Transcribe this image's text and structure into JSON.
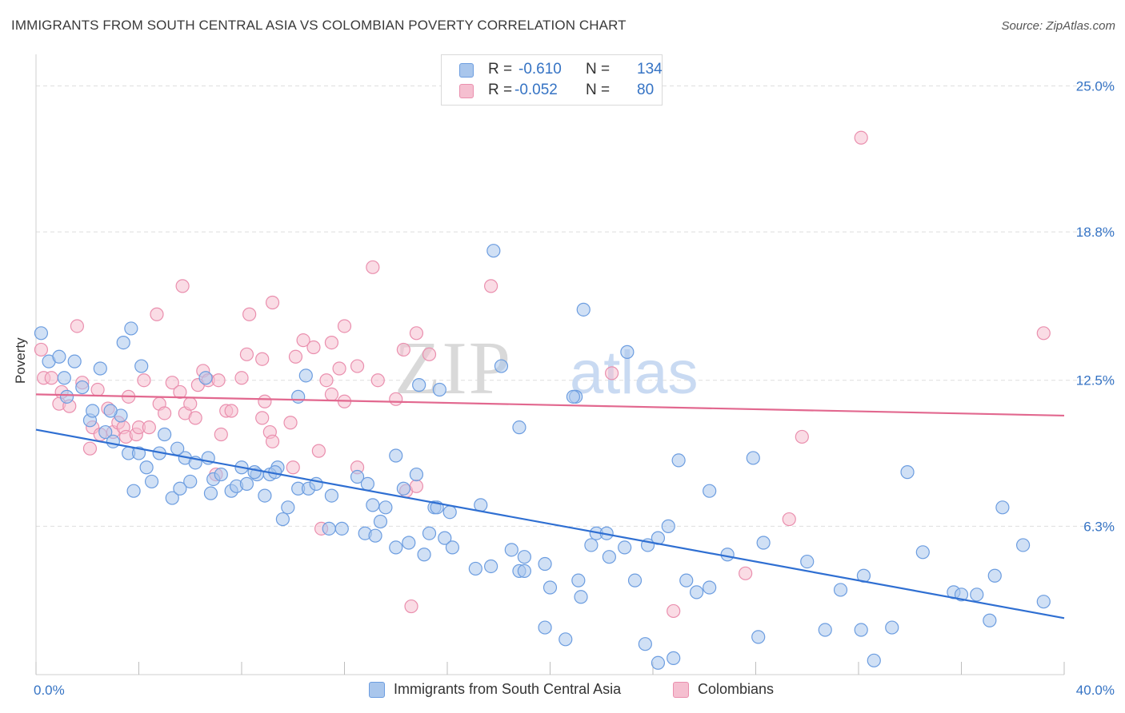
{
  "header": {
    "title": "IMMIGRANTS FROM SOUTH CENTRAL ASIA VS COLOMBIAN POVERTY CORRELATION CHART",
    "source": "Source: ZipAtlas.com"
  },
  "legend": {
    "rows": [
      {
        "r_label": "R =",
        "r_value": "-0.610",
        "n_label": "N =",
        "n_value": "134"
      },
      {
        "r_label": "R =",
        "r_value": "-0.052",
        "n_label": "N =",
        "n_value": "80"
      }
    ]
  },
  "bottom_legend": {
    "series1": "Immigrants from South Central Asia",
    "series2": "Colombians"
  },
  "watermark": {
    "zip": "ZIP",
    "atlas": "atlas"
  },
  "colors": {
    "blue_fill": "#a9c6ec",
    "blue_stroke": "#6c9de0",
    "blue_line": "#2f6fd2",
    "pink_fill": "#f5bfd0",
    "pink_stroke": "#ea8fae",
    "pink_line": "#e2688f",
    "tick_label": "#3573c4",
    "grid": "#dedede"
  },
  "chart_data": {
    "type": "scatter",
    "title": "IMMIGRANTS FROM SOUTH CENTRAL ASIA VS COLOMBIAN POVERTY CORRELATION CHART",
    "xlabel": "",
    "ylabel": "Poverty",
    "xlim": [
      0,
      40
    ],
    "ylim": [
      0,
      26
    ],
    "x_tick_labels": [
      "0.0%",
      "40.0%"
    ],
    "y_ticks": [
      6.3,
      12.5,
      18.8,
      25.0
    ],
    "y_tick_labels": [
      "6.3%",
      "12.5%",
      "18.8%",
      "25.0%"
    ],
    "grid": true,
    "legend_position": "top-center",
    "series": [
      {
        "name": "Immigrants from South Central Asia",
        "color": "#6c9de0",
        "r": -0.61,
        "n": 134,
        "trend": {
          "x": [
            0,
            40
          ],
          "y": [
            10.4,
            2.4
          ]
        },
        "points": [
          [
            0.2,
            14.5
          ],
          [
            0.5,
            13.3
          ],
          [
            0.9,
            13.5
          ],
          [
            1.5,
            13.3
          ],
          [
            2.5,
            13
          ],
          [
            1.8,
            12.2
          ],
          [
            1.2,
            11.8
          ],
          [
            3.4,
            14.1
          ],
          [
            2.1,
            10.8
          ],
          [
            2.7,
            10.3
          ],
          [
            3.3,
            11
          ],
          [
            2.9,
            11.2
          ],
          [
            3,
            9.9
          ],
          [
            3.6,
            9.4
          ],
          [
            4,
            9.4
          ],
          [
            4.8,
            9.4
          ],
          [
            5,
            10.2
          ],
          [
            4.3,
            8.8
          ],
          [
            4.5,
            8.2
          ],
          [
            3.8,
            7.8
          ],
          [
            5.3,
            7.5
          ],
          [
            5.6,
            7.9
          ],
          [
            6,
            8.2
          ],
          [
            5.8,
            9.2
          ],
          [
            6.2,
            9
          ],
          [
            6.7,
            9.2
          ],
          [
            6.8,
            7.7
          ],
          [
            6.9,
            8.3
          ],
          [
            7.6,
            7.8
          ],
          [
            7.8,
            8
          ],
          [
            8.2,
            8.1
          ],
          [
            8.6,
            8.5
          ],
          [
            8.9,
            7.6
          ],
          [
            8,
            8.8
          ],
          [
            8.5,
            8.6
          ],
          [
            9.4,
            8.8
          ],
          [
            9.1,
            8.5
          ],
          [
            9.8,
            7.1
          ],
          [
            9.6,
            6.6
          ],
          [
            10.2,
            7.9
          ],
          [
            10.6,
            7.9
          ],
          [
            10.9,
            8.1
          ],
          [
            11.4,
            6.2
          ],
          [
            11.9,
            6.2
          ],
          [
            12.5,
            8.4
          ],
          [
            12.9,
            8.1
          ],
          [
            13.6,
            7.1
          ],
          [
            13.4,
            6.5
          ],
          [
            14,
            9.3
          ],
          [
            14.3,
            7.9
          ],
          [
            14.8,
            8.5
          ],
          [
            15.5,
            7.1
          ],
          [
            15.6,
            7.1
          ],
          [
            16.1,
            6.9
          ],
          [
            17.3,
            7.2
          ],
          [
            12.8,
            6
          ],
          [
            13.2,
            5.9
          ],
          [
            14,
            5.4
          ],
          [
            14.5,
            5.6
          ],
          [
            15.1,
            5.1
          ],
          [
            15.3,
            6
          ],
          [
            15.9,
            5.8
          ],
          [
            16.2,
            5.4
          ],
          [
            17.1,
            4.5
          ],
          [
            17.7,
            4.6
          ],
          [
            18.5,
            5.3
          ],
          [
            18.8,
            4.4
          ],
          [
            19,
            4.4
          ],
          [
            19,
            5
          ],
          [
            19.8,
            4.7
          ],
          [
            20,
            3.7
          ],
          [
            21.1,
            4
          ],
          [
            21.6,
            5.5
          ],
          [
            21.8,
            6
          ],
          [
            22.2,
            6
          ],
          [
            22.3,
            5
          ],
          [
            22.9,
            5.4
          ],
          [
            23.3,
            4
          ],
          [
            23.8,
            5.5
          ],
          [
            24.2,
            5.8
          ],
          [
            24.6,
            6.3
          ],
          [
            26.2,
            3.7
          ],
          [
            26.9,
            5.1
          ],
          [
            28.3,
            5.6
          ],
          [
            30,
            4.8
          ],
          [
            31.3,
            3.6
          ],
          [
            32.2,
            4.2
          ],
          [
            33.3,
            2
          ],
          [
            34.5,
            5.2
          ],
          [
            35.7,
            3.5
          ],
          [
            36,
            3.4
          ],
          [
            36.6,
            3.4
          ],
          [
            37.1,
            2.3
          ],
          [
            37.3,
            4.2
          ],
          [
            38.4,
            5.5
          ],
          [
            39.2,
            3.1
          ],
          [
            17.8,
            18
          ],
          [
            21.3,
            15.5
          ],
          [
            23,
            13.7
          ],
          [
            18.1,
            13.1
          ],
          [
            21,
            11.8
          ],
          [
            18.8,
            10.5
          ],
          [
            20.9,
            11.8
          ],
          [
            25,
            9.1
          ],
          [
            27.9,
            9.2
          ],
          [
            26.2,
            7.8
          ],
          [
            33.9,
            8.6
          ],
          [
            37.6,
            7.1
          ],
          [
            19.8,
            2
          ],
          [
            20.6,
            1.5
          ],
          [
            21.2,
            3.3
          ],
          [
            23.7,
            1.3
          ],
          [
            24.2,
            0.5
          ],
          [
            24.8,
            0.7
          ],
          [
            25.7,
            3.5
          ],
          [
            25.3,
            4
          ],
          [
            28.1,
            1.6
          ],
          [
            30.7,
            1.9
          ],
          [
            32.1,
            1.9
          ],
          [
            32.6,
            0.6
          ],
          [
            3.7,
            14.7
          ],
          [
            6.6,
            12.6
          ],
          [
            10.2,
            11.8
          ],
          [
            10.5,
            12.7
          ],
          [
            4.1,
            13.1
          ],
          [
            2.2,
            11.2
          ],
          [
            1.1,
            12.6
          ],
          [
            5.5,
            9.6
          ],
          [
            9.3,
            8.6
          ],
          [
            7.2,
            8.5
          ],
          [
            11.5,
            7.6
          ],
          [
            13.1,
            7.2
          ],
          [
            14.9,
            12.3
          ],
          [
            15.7,
            12.1
          ]
        ]
      },
      {
        "name": "Colombians",
        "color": "#ea8fae",
        "r": -0.052,
        "n": 80,
        "trend": {
          "x": [
            0,
            40
          ],
          "y": [
            11.9,
            11.0
          ]
        },
        "points": [
          [
            0.2,
            13.8
          ],
          [
            0.3,
            12.6
          ],
          [
            0.6,
            12.6
          ],
          [
            1,
            12
          ],
          [
            0.9,
            11.5
          ],
          [
            1.3,
            11.4
          ],
          [
            1.8,
            12.4
          ],
          [
            1.6,
            14.8
          ],
          [
            2.4,
            12.1
          ],
          [
            2.2,
            10.5
          ],
          [
            2.5,
            10.2
          ],
          [
            2.1,
            9.6
          ],
          [
            2.8,
            11.3
          ],
          [
            3,
            10.3
          ],
          [
            3.2,
            10.7
          ],
          [
            3.4,
            10.5
          ],
          [
            3.5,
            10.1
          ],
          [
            3.9,
            10.2
          ],
          [
            3.6,
            11.8
          ],
          [
            4,
            10.5
          ],
          [
            4.4,
            10.5
          ],
          [
            4.2,
            12.5
          ],
          [
            4.8,
            11.5
          ],
          [
            5,
            11.1
          ],
          [
            5.3,
            12.4
          ],
          [
            5.6,
            12
          ],
          [
            5.8,
            11.1
          ],
          [
            6,
            11.5
          ],
          [
            6.2,
            10.9
          ],
          [
            6.3,
            12.3
          ],
          [
            6.5,
            12.9
          ],
          [
            6.7,
            12.5
          ],
          [
            7.1,
            12.5
          ],
          [
            7.2,
            10.2
          ],
          [
            7.4,
            11.2
          ],
          [
            7.6,
            11.2
          ],
          [
            8,
            12.6
          ],
          [
            8.2,
            13.6
          ],
          [
            8.8,
            13.4
          ],
          [
            8.9,
            11.6
          ],
          [
            9.1,
            10.3
          ],
          [
            9.2,
            9.9
          ],
          [
            9.9,
            10.7
          ],
          [
            10.1,
            13.5
          ],
          [
            10.4,
            14.2
          ],
          [
            10.8,
            13.9
          ],
          [
            11.3,
            12.5
          ],
          [
            11.5,
            11.9
          ],
          [
            11.8,
            13
          ],
          [
            11.5,
            14.1
          ],
          [
            12,
            14.8
          ],
          [
            12,
            11.6
          ],
          [
            12.5,
            13.1
          ],
          [
            13.3,
            12.5
          ],
          [
            14.3,
            13.8
          ],
          [
            14.8,
            14.5
          ],
          [
            15.3,
            13.6
          ],
          [
            14,
            11.7
          ],
          [
            12.5,
            8.8
          ],
          [
            11,
            9.5
          ],
          [
            10,
            8.8
          ],
          [
            7,
            8.5
          ],
          [
            8.8,
            10.9
          ],
          [
            14.4,
            7.8
          ],
          [
            14.8,
            8
          ],
          [
            11.1,
            6.2
          ],
          [
            5.7,
            16.5
          ],
          [
            4.7,
            15.3
          ],
          [
            8.3,
            15.3
          ],
          [
            9.2,
            15.8
          ],
          [
            13.1,
            17.3
          ],
          [
            17.7,
            16.5
          ],
          [
            14.6,
            2.9
          ],
          [
            24.8,
            2.7
          ],
          [
            27.6,
            4.3
          ],
          [
            29.3,
            6.6
          ],
          [
            32.1,
            22.8
          ],
          [
            39.2,
            14.5
          ],
          [
            22.4,
            12.8
          ],
          [
            29.8,
            10.1
          ]
        ]
      }
    ]
  }
}
